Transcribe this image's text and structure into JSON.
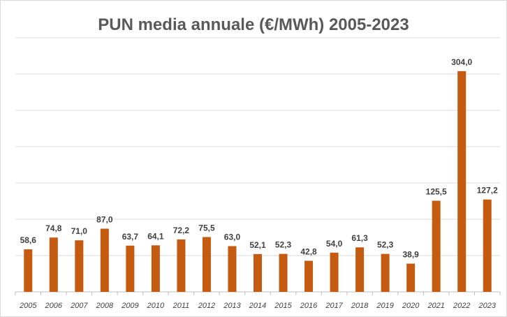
{
  "chart_data": {
    "type": "bar",
    "title": "PUN media annuale (€/MWh) 2005-2023",
    "xlabel": "",
    "ylabel": "",
    "categories": [
      "2005",
      "2006",
      "2007",
      "2008",
      "2009",
      "2010",
      "2011",
      "2012",
      "2013",
      "2014",
      "2015",
      "2016",
      "2017",
      "2018",
      "2019",
      "2020",
      "2021",
      "2022",
      "2023"
    ],
    "values": [
      58.6,
      74.8,
      71.0,
      87.0,
      63.7,
      64.1,
      72.2,
      75.5,
      63.0,
      52.1,
      52.3,
      42.8,
      54.0,
      61.3,
      52.3,
      38.9,
      125.5,
      304.0,
      127.2
    ],
    "value_labels": [
      "58,6",
      "74,8",
      "71,0",
      "87,0",
      "63,7",
      "64,1",
      "72,2",
      "75,5",
      "63,0",
      "52,1",
      "52,3",
      "42,8",
      "54,0",
      "61,3",
      "52,3",
      "38,9",
      "125,5",
      "304,0",
      "127,2"
    ],
    "ylim": [
      0,
      350
    ],
    "grid": true,
    "gridline_step": 50,
    "legend": "none",
    "bar_color": "#c55a11"
  }
}
